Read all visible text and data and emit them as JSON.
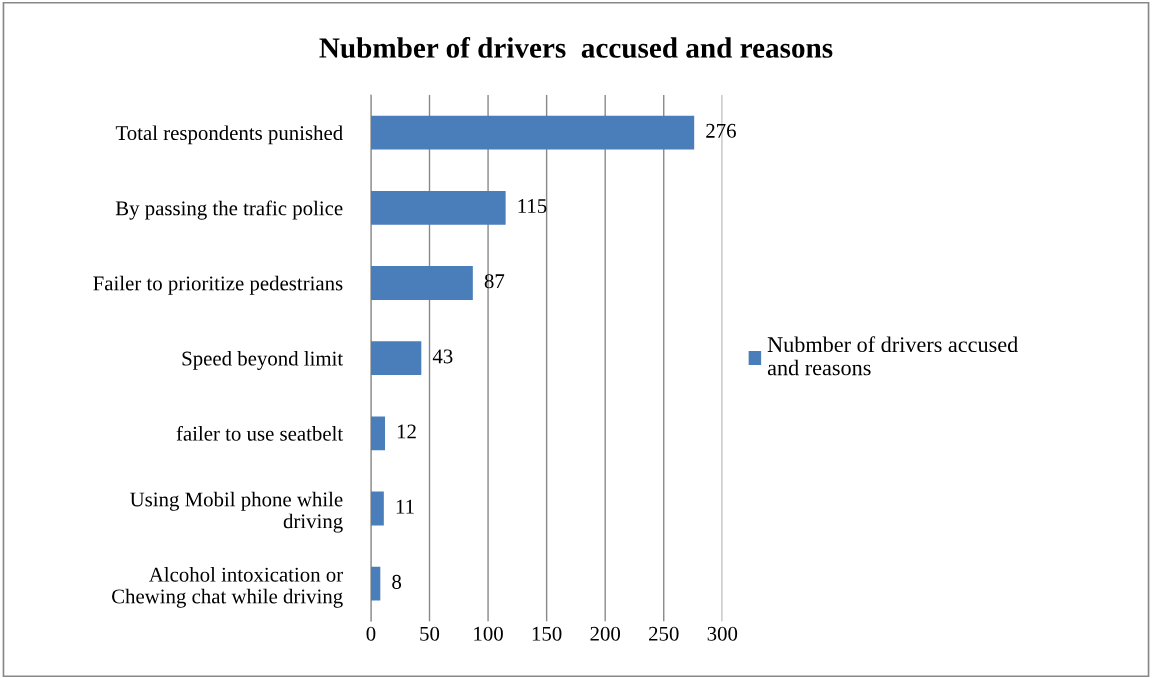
{
  "chart_data": {
    "type": "bar",
    "orientation": "horizontal",
    "title": "Nubmber of drivers  accused and reasons",
    "categories": [
      "Total respondents punished",
      "By passing the trafic police",
      "Failer to prioritize pedestrians",
      "Speed beyond limit",
      "failer to use seatbelt",
      "Using Mobil phone while\ndriving",
      "Alcohol intoxication or\nChewing chat while driving"
    ],
    "series": [
      {
        "name": "Nubmber of drivers accused\nand reasons",
        "color": "#4a7ebb",
        "values": [
          276,
          115,
          87,
          43,
          12,
          11,
          8
        ]
      }
    ],
    "xlim": [
      0,
      300
    ],
    "xticks": [
      0,
      50,
      100,
      150,
      200,
      250,
      300
    ],
    "grid": "x",
    "legend": "right",
    "data_labels": true
  }
}
